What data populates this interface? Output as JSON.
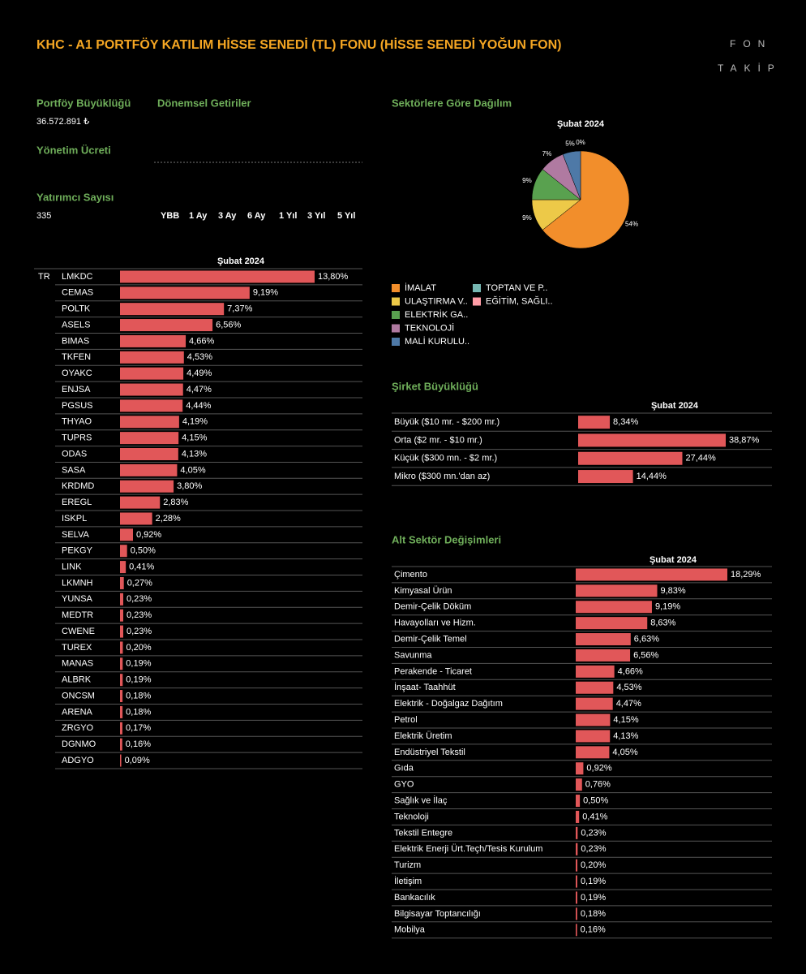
{
  "header": {
    "title": "KHC - A1 PORTFÖY KATILIM HİSSE SENEDİ (TL) FONU (HİSSE SENEDİ YOĞUN FON)",
    "logo_top": "FON",
    "logo_bottom": "TAKİP"
  },
  "info": {
    "size_label": "Portföy Büyüklüğü",
    "size_value": "36.572.891 ₺",
    "fee_label": "Yönetim Ücreti",
    "investors_label": "Yatırımcı Sayısı",
    "investors_value": "335",
    "returns_label": "Dönemsel Getiriler",
    "periods": [
      "YBB",
      "1 Ay",
      "3 Ay",
      "6 Ay",
      "1 Yıl",
      "3 Yıl",
      "5 Yıl"
    ]
  },
  "chart_data": [
    {
      "type": "pie",
      "title": "Sektörlere Göre Dağılım",
      "subtitle": "Şubat 2024",
      "categories": [
        "İMALAT",
        "ULAŞTIRMA V..",
        "ELEKTRİK GA..",
        "TEKNOLOJİ",
        "MALİ KURULU..",
        "TOPTAN VE P..",
        "EĞİTİM, SAĞLI.."
      ],
      "values": [
        54,
        9,
        9,
        7,
        5,
        0,
        0
      ],
      "value_labels": [
        "54%",
        "9%",
        "9%",
        "7%",
        "5%",
        "0%",
        null
      ],
      "colors": [
        "#f28e2b",
        "#edc948",
        "#59a14f",
        "#b07aa1",
        "#4e79a7",
        "#76b7b2",
        "#ff9da7"
      ]
    },
    {
      "type": "bar",
      "subtitle": "Şubat 2024",
      "group": "TR",
      "color": "#e15759",
      "categories": [
        "LMKDC",
        "CEMAS",
        "POLTK",
        "ASELS",
        "BIMAS",
        "TKFEN",
        "OYAKC",
        "ENJSA",
        "PGSUS",
        "THYAO",
        "TUPRS",
        "ODAS",
        "SASA",
        "KRDMD",
        "EREGL",
        "ISKPL",
        "SELVA",
        "PEKGY",
        "LINK",
        "LKMNH",
        "YUNSA",
        "MEDTR",
        "CWENE",
        "TUREX",
        "MANAS",
        "ALBRK",
        "ONCSM",
        "ARENA",
        "ZRGYO",
        "DGNMO",
        "ADGYO"
      ],
      "values": [
        13.8,
        9.19,
        7.37,
        6.56,
        4.66,
        4.53,
        4.49,
        4.47,
        4.44,
        4.19,
        4.15,
        4.13,
        4.05,
        3.8,
        2.83,
        2.28,
        0.92,
        0.5,
        0.41,
        0.27,
        0.23,
        0.23,
        0.23,
        0.2,
        0.19,
        0.19,
        0.18,
        0.18,
        0.17,
        0.16,
        0.09
      ],
      "value_labels": [
        "13,80%",
        "9,19%",
        "7,37%",
        "6,56%",
        "4,66%",
        "4,53%",
        "4,49%",
        "4,47%",
        "4,44%",
        "4,19%",
        "4,15%",
        "4,13%",
        "4,05%",
        "3,80%",
        "2,83%",
        "2,28%",
        "0,92%",
        "0,50%",
        "0,41%",
        "0,27%",
        "0,23%",
        "0,23%",
        "0,23%",
        "0,20%",
        "0,19%",
        "0,19%",
        "0,18%",
        "0,18%",
        "0,17%",
        "0,16%",
        "0,09%"
      ]
    },
    {
      "type": "bar",
      "title": "Şirket Büyüklüğü",
      "subtitle": "Şubat 2024",
      "color": "#e15759",
      "categories": [
        "Büyük ($10 mr. - $200 mr.)",
        "Orta ($2 mr. - $10 mr.)",
        "Küçük ($300 mn. - $2 mr.)",
        "Mikro ($300 mn.'dan az)"
      ],
      "values": [
        8.34,
        38.87,
        27.44,
        14.44
      ],
      "value_labels": [
        "8,34%",
        "38,87%",
        "27,44%",
        "14,44%"
      ]
    },
    {
      "type": "bar",
      "title": "Alt Sektör Değişimleri",
      "subtitle": "Şubat 2024",
      "color": "#e15759",
      "categories": [
        "Çimento",
        "Kimyasal Ürün",
        "Demir-Çelik Döküm",
        "Havayolları ve Hizm.",
        "Demir-Çelik Temel",
        "Savunma",
        "Perakende - Ticaret",
        "İnşaat- Taahhüt",
        "Elektrik - Doğalgaz Dağıtım",
        "Petrol",
        "Elektrik Üretim",
        "Endüstriyel Tekstil",
        "Gıda",
        "GYO",
        "Sağlık ve İlaç",
        "Teknoloji",
        "Tekstil Entegre",
        "Elektrik Enerji Ürt.Teçh/Tesis Kurulum",
        "Turizm",
        "İletişim",
        "Bankacılık",
        "Bilgisayar Toptancılığı",
        "Mobilya"
      ],
      "values": [
        18.29,
        9.83,
        9.19,
        8.63,
        6.63,
        6.56,
        4.66,
        4.53,
        4.47,
        4.15,
        4.13,
        4.05,
        0.92,
        0.76,
        0.5,
        0.41,
        0.23,
        0.23,
        0.2,
        0.19,
        0.19,
        0.18,
        0.16
      ],
      "value_labels": [
        "18,29%",
        "9,83%",
        "9,19%",
        "8,63%",
        "6,63%",
        "6,56%",
        "4,66%",
        "4,53%",
        "4,47%",
        "4,15%",
        "4,13%",
        "4,05%",
        "0,92%",
        "0,76%",
        "0,50%",
        "0,41%",
        "0,23%",
        "0,23%",
        "0,20%",
        "0,19%",
        "0,19%",
        "0,18%",
        "0,16%"
      ]
    }
  ]
}
